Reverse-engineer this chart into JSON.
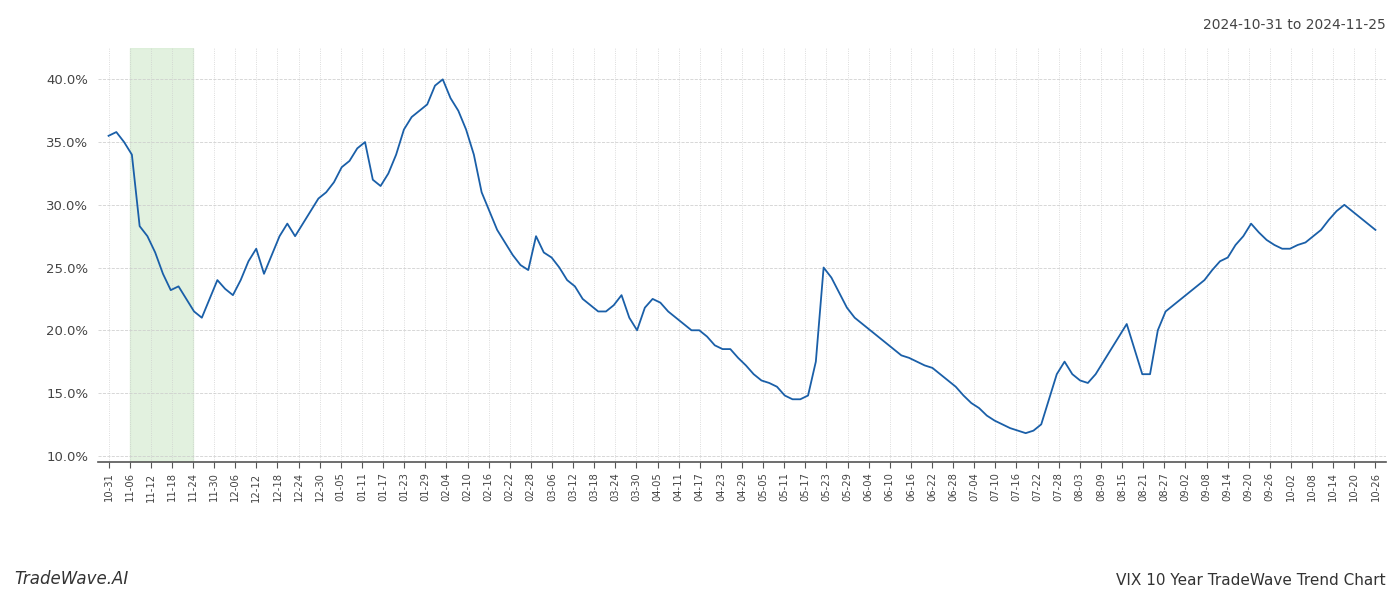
{
  "title_top_right": "2024-10-31 to 2024-11-25",
  "title_bottom_right": "VIX 10 Year TradeWave Trend Chart",
  "title_bottom_left": "TradeWave.AI",
  "line_color": "#1a5fa8",
  "line_width": 1.3,
  "shade_color": "#d6ecd2",
  "shade_alpha": 0.7,
  "shade_xstart_idx": 1,
  "shade_xend_idx": 4,
  "ylim": [
    0.095,
    0.425
  ],
  "yticks": [
    0.1,
    0.15,
    0.2,
    0.25,
    0.3,
    0.35,
    0.4
  ],
  "background_color": "#ffffff",
  "grid_color": "#cccccc",
  "x_labels": [
    "10-31",
    "11-06",
    "11-12",
    "11-18",
    "11-24",
    "11-30",
    "12-06",
    "12-12",
    "12-18",
    "12-24",
    "12-30",
    "01-05",
    "01-11",
    "01-17",
    "01-23",
    "01-29",
    "02-04",
    "02-10",
    "02-16",
    "02-22",
    "02-28",
    "03-06",
    "03-12",
    "03-18",
    "03-24",
    "03-30",
    "04-05",
    "04-11",
    "04-17",
    "04-23",
    "04-29",
    "05-05",
    "05-11",
    "05-17",
    "05-23",
    "05-29",
    "06-04",
    "06-10",
    "06-16",
    "06-22",
    "06-28",
    "07-04",
    "07-10",
    "07-16",
    "07-22",
    "07-28",
    "08-03",
    "08-09",
    "08-15",
    "08-21",
    "08-27",
    "09-02",
    "09-08",
    "09-14",
    "09-20",
    "09-26",
    "10-02",
    "10-08",
    "10-14",
    "10-20",
    "10-26"
  ],
  "values": [
    0.355,
    0.358,
    0.35,
    0.34,
    0.283,
    0.275,
    0.262,
    0.245,
    0.232,
    0.235,
    0.225,
    0.215,
    0.21,
    0.225,
    0.24,
    0.233,
    0.228,
    0.24,
    0.255,
    0.265,
    0.245,
    0.26,
    0.275,
    0.285,
    0.275,
    0.285,
    0.295,
    0.305,
    0.31,
    0.318,
    0.33,
    0.335,
    0.345,
    0.35,
    0.32,
    0.315,
    0.325,
    0.34,
    0.36,
    0.37,
    0.375,
    0.38,
    0.395,
    0.4,
    0.385,
    0.375,
    0.36,
    0.34,
    0.31,
    0.295,
    0.28,
    0.27,
    0.26,
    0.252,
    0.248,
    0.275,
    0.262,
    0.258,
    0.25,
    0.24,
    0.235,
    0.225,
    0.22,
    0.215,
    0.215,
    0.22,
    0.228,
    0.21,
    0.2,
    0.218,
    0.225,
    0.222,
    0.215,
    0.21,
    0.205,
    0.2,
    0.2,
    0.195,
    0.188,
    0.185,
    0.185,
    0.178,
    0.172,
    0.165,
    0.16,
    0.158,
    0.155,
    0.148,
    0.145,
    0.145,
    0.148,
    0.175,
    0.25,
    0.242,
    0.23,
    0.218,
    0.21,
    0.205,
    0.2,
    0.195,
    0.19,
    0.185,
    0.18,
    0.178,
    0.175,
    0.172,
    0.17,
    0.165,
    0.16,
    0.155,
    0.148,
    0.142,
    0.138,
    0.132,
    0.128,
    0.125,
    0.122,
    0.12,
    0.118,
    0.12,
    0.125,
    0.145,
    0.165,
    0.175,
    0.165,
    0.16,
    0.158,
    0.165,
    0.175,
    0.185,
    0.195,
    0.205,
    0.185,
    0.165,
    0.165,
    0.2,
    0.215,
    0.22,
    0.225,
    0.23,
    0.235,
    0.24,
    0.248,
    0.255,
    0.258,
    0.268,
    0.275,
    0.285,
    0.278,
    0.272,
    0.268,
    0.265,
    0.265,
    0.268,
    0.27,
    0.275,
    0.28,
    0.288,
    0.295,
    0.3,
    0.295,
    0.29,
    0.285,
    0.28
  ],
  "n_ticks": 61,
  "tick_step": 3
}
